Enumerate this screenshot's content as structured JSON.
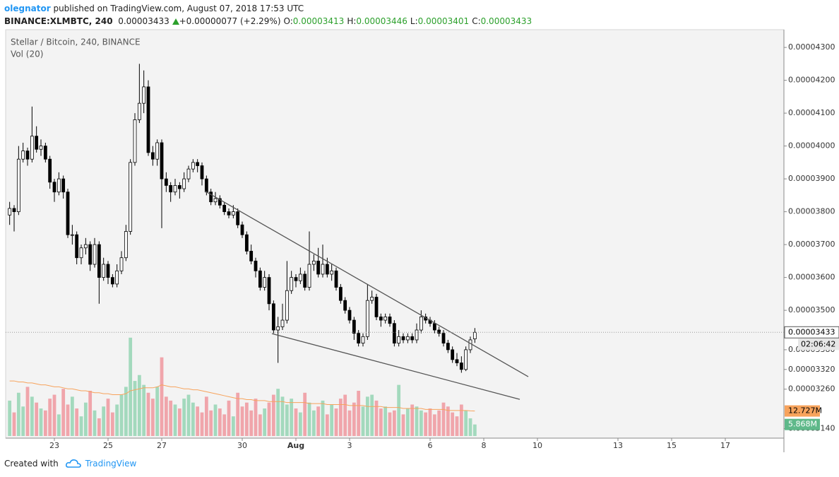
{
  "header": {
    "author": "olegnator",
    "published": "published on TradingView.com, August 07, 2018 17:53 UTC",
    "symbol": "BINANCE:XLMBTC, 240",
    "last": "0.00003433",
    "change": "+0.00000077 (+2.29%)",
    "ohlc": [
      {
        "label": "O:",
        "value": "0.00003413"
      },
      {
        "label": "H:",
        "value": "0.00003446"
      },
      {
        "label": "L:",
        "value": "0.00003401"
      },
      {
        "label": "C:",
        "value": "0.00003433"
      }
    ]
  },
  "chart_data": {
    "type": "candlestick",
    "title": "Stellar / Bitcoin, 240, BINANCE",
    "volume_label": "Vol (20)",
    "x": [
      21.333,
      21.5,
      21.667,
      21.833,
      22,
      22.167,
      22.333,
      22.5,
      22.667,
      22.833,
      23,
      23.167,
      23.333,
      23.5,
      23.667,
      23.833,
      24,
      24.167,
      24.333,
      24.5,
      24.667,
      24.833,
      25,
      25.167,
      25.333,
      25.5,
      25.667,
      25.833,
      26,
      26.167,
      26.333,
      26.5,
      26.667,
      26.833,
      27,
      27.167,
      27.333,
      27.5,
      27.667,
      27.833,
      28,
      28.167,
      28.333,
      28.5,
      28.667,
      28.833,
      29,
      29.167,
      29.333,
      29.5,
      29.667,
      29.833,
      30,
      30.167,
      30.333,
      30.5,
      30.667,
      30.833,
      31,
      31.167,
      31.333,
      31.5,
      31.667,
      31.833,
      32,
      32.167,
      32.333,
      32.5,
      32.667,
      32.833,
      33,
      33.167,
      33.333,
      33.5,
      33.667,
      33.833,
      34,
      34.167,
      34.333,
      34.5,
      34.667,
      34.833,
      35,
      35.167,
      35.333,
      35.5,
      35.667,
      35.833,
      36,
      36.167,
      36.333,
      36.5,
      36.667,
      36.833,
      37,
      37.167,
      37.333,
      37.5,
      37.667,
      37.833,
      38,
      38.167,
      38.333,
      38.5,
      38.667
    ],
    "open": [
      3.79e-05,
      3.81e-05,
      3.8e-05,
      3.96e-05,
      3.985e-05,
      3.96e-05,
      4.03e-05,
      3.99e-05,
      4e-05,
      3.96e-05,
      3.89e-05,
      3.86e-05,
      3.9e-05,
      3.86e-05,
      3.73e-05,
      3.73e-05,
      3.66e-05,
      3.69e-05,
      3.7e-05,
      3.64e-05,
      3.7e-05,
      3.6e-05,
      3.64e-05,
      3.6e-05,
      3.58e-05,
      3.62e-05,
      3.66e-05,
      3.74e-05,
      3.95e-05,
      4.08e-05,
      4.13e-05,
      4.18e-05,
      3.98e-05,
      3.96e-05,
      4.01e-05,
      3.9e-05,
      3.88e-05,
      3.86e-05,
      3.88e-05,
      3.87e-05,
      3.9e-05,
      3.93e-05,
      3.95e-05,
      3.94e-05,
      3.9e-05,
      3.86e-05,
      3.83e-05,
      3.84e-05,
      3.82e-05,
      3.8e-05,
      3.79e-05,
      3.8e-05,
      3.76e-05,
      3.73e-05,
      3.68e-05,
      3.65e-05,
      3.62e-05,
      3.57e-05,
      3.6e-05,
      3.52e-05,
      3.44e-05,
      3.45e-05,
      3.47e-05,
      3.56e-05,
      3.6e-05,
      3.59e-05,
      3.61e-05,
      3.57e-05,
      3.64e-05,
      3.65e-05,
      3.61e-05,
      3.64e-05,
      3.61e-05,
      3.62e-05,
      3.57e-05,
      3.53e-05,
      3.5e-05,
      3.47e-05,
      3.43e-05,
      3.4e-05,
      3.42e-05,
      3.53e-05,
      3.54e-05,
      3.48e-05,
      3.47e-05,
      3.48e-05,
      3.46e-05,
      3.4e-05,
      3.42e-05,
      3.41e-05,
      3.42e-05,
      3.41e-05,
      3.44e-05,
      3.48e-05,
      3.47e-05,
      3.46e-05,
      3.44e-05,
      3.43e-05,
      3.4e-05,
      3.38e-05,
      3.35e-05,
      3.34e-05,
      3.32e-05,
      3.38e-05,
      3.413e-05
    ],
    "high": [
      3.83e-05,
      3.82e-05,
      4e-05,
      4.01e-05,
      3.995e-05,
      4.12e-05,
      4.06e-05,
      4.02e-05,
      4.01e-05,
      3.97e-05,
      3.9e-05,
      3.92e-05,
      3.91e-05,
      3.87e-05,
      3.76e-05,
      3.74e-05,
      3.7e-05,
      3.72e-05,
      3.71e-05,
      3.72e-05,
      3.71e-05,
      3.66e-05,
      3.65e-05,
      3.61e-05,
      3.64e-05,
      3.68e-05,
      3.76e-05,
      3.96e-05,
      4.1e-05,
      4.25e-05,
      4.23e-05,
      4.2e-05,
      4e-05,
      4.02e-05,
      4.02e-05,
      3.92e-05,
      3.89e-05,
      3.9e-05,
      3.89e-05,
      3.92e-05,
      3.94e-05,
      3.96e-05,
      3.96e-05,
      3.95e-05,
      3.91e-05,
      3.87e-05,
      3.86e-05,
      3.85e-05,
      3.83e-05,
      3.81e-05,
      3.82e-05,
      3.81e-05,
      3.77e-05,
      3.74e-05,
      3.7e-05,
      3.66e-05,
      3.63e-05,
      3.62e-05,
      3.61e-05,
      3.53e-05,
      3.48e-05,
      3.52e-05,
      3.65e-05,
      3.62e-05,
      3.61e-05,
      3.63e-05,
      3.62e-05,
      3.74e-05,
      3.67e-05,
      3.69e-05,
      3.7e-05,
      3.66e-05,
      3.64e-05,
      3.63e-05,
      3.58e-05,
      3.54e-05,
      3.51e-05,
      3.48e-05,
      3.44e-05,
      3.43e-05,
      3.58e-05,
      3.56e-05,
      3.55e-05,
      3.49e-05,
      3.49e-05,
      3.49e-05,
      3.47e-05,
      3.44e-05,
      3.43e-05,
      3.43e-05,
      3.43e-05,
      3.46e-05,
      3.5e-05,
      3.49e-05,
      3.48e-05,
      3.47e-05,
      3.45e-05,
      3.44e-05,
      3.41e-05,
      3.39e-05,
      3.37e-05,
      3.36e-05,
      3.39e-05,
      3.42e-05,
      3.446e-05
    ],
    "low": [
      3.76e-05,
      3.74e-05,
      3.79e-05,
      3.95e-05,
      3.94e-05,
      3.95e-05,
      3.98e-05,
      3.97e-05,
      3.95e-05,
      3.87e-05,
      3.83e-05,
      3.85e-05,
      3.84e-05,
      3.72e-05,
      3.7e-05,
      3.64e-05,
      3.64e-05,
      3.67e-05,
      3.62e-05,
      3.63e-05,
      3.52e-05,
      3.59e-05,
      3.58e-05,
      3.57e-05,
      3.57e-05,
      3.61e-05,
      3.65e-05,
      3.73e-05,
      3.94e-05,
      4.07e-05,
      4.1e-05,
      3.97e-05,
      3.94e-05,
      3.94e-05,
      3.75e-05,
      3.86e-05,
      3.83e-05,
      3.85e-05,
      3.84e-05,
      3.86e-05,
      3.89e-05,
      3.92e-05,
      3.92e-05,
      3.88e-05,
      3.85e-05,
      3.82e-05,
      3.82e-05,
      3.81e-05,
      3.79e-05,
      3.78e-05,
      3.78e-05,
      3.75e-05,
      3.72e-05,
      3.67e-05,
      3.64e-05,
      3.6e-05,
      3.56e-05,
      3.56e-05,
      3.5e-05,
      3.43e-05,
      3.34e-05,
      3.44e-05,
      3.46e-05,
      3.55e-05,
      3.57e-05,
      3.58e-05,
      3.56e-05,
      3.56e-05,
      3.62e-05,
      3.6e-05,
      3.6e-05,
      3.6e-05,
      3.59e-05,
      3.56e-05,
      3.52e-05,
      3.49e-05,
      3.46e-05,
      3.41e-05,
      3.39e-05,
      3.39e-05,
      3.41e-05,
      3.52e-05,
      3.47e-05,
      3.45e-05,
      3.46e-05,
      3.45e-05,
      3.39e-05,
      3.39e-05,
      3.4e-05,
      3.4e-05,
      3.4e-05,
      3.4e-05,
      3.43e-05,
      3.46e-05,
      3.45e-05,
      3.43e-05,
      3.42e-05,
      3.39e-05,
      3.37e-05,
      3.34e-05,
      3.33e-05,
      3.31e-05,
      3.315e-05,
      3.37e-05,
      3.401e-05
    ],
    "close": [
      3.81e-05,
      3.8e-05,
      3.96e-05,
      3.985e-05,
      3.96e-05,
      4.03e-05,
      3.99e-05,
      4e-05,
      3.96e-05,
      3.89e-05,
      3.86e-05,
      3.9e-05,
      3.86e-05,
      3.73e-05,
      3.73e-05,
      3.66e-05,
      3.69e-05,
      3.7e-05,
      3.64e-05,
      3.7e-05,
      3.6e-05,
      3.64e-05,
      3.6e-05,
      3.58e-05,
      3.62e-05,
      3.66e-05,
      3.74e-05,
      3.95e-05,
      4.08e-05,
      4.13e-05,
      4.18e-05,
      3.98e-05,
      3.96e-05,
      4.01e-05,
      3.9e-05,
      3.88e-05,
      3.86e-05,
      3.88e-05,
      3.87e-05,
      3.9e-05,
      3.93e-05,
      3.95e-05,
      3.94e-05,
      3.9e-05,
      3.86e-05,
      3.83e-05,
      3.84e-05,
      3.82e-05,
      3.8e-05,
      3.79e-05,
      3.8e-05,
      3.76e-05,
      3.73e-05,
      3.68e-05,
      3.65e-05,
      3.62e-05,
      3.57e-05,
      3.6e-05,
      3.52e-05,
      3.44e-05,
      3.45e-05,
      3.47e-05,
      3.56e-05,
      3.6e-05,
      3.59e-05,
      3.61e-05,
      3.57e-05,
      3.64e-05,
      3.65e-05,
      3.61e-05,
      3.64e-05,
      3.61e-05,
      3.62e-05,
      3.57e-05,
      3.53e-05,
      3.5e-05,
      3.47e-05,
      3.43e-05,
      3.4e-05,
      3.42e-05,
      3.53e-05,
      3.54e-05,
      3.48e-05,
      3.47e-05,
      3.48e-05,
      3.46e-05,
      3.4e-05,
      3.42e-05,
      3.41e-05,
      3.42e-05,
      3.41e-05,
      3.44e-05,
      3.48e-05,
      3.47e-05,
      3.46e-05,
      3.44e-05,
      3.43e-05,
      3.4e-05,
      3.38e-05,
      3.35e-05,
      3.34e-05,
      3.32e-05,
      3.38e-05,
      3.41e-05,
      3.433e-05
    ],
    "volume": [
      18,
      12,
      22,
      15,
      25,
      20,
      17,
      14,
      13,
      19,
      21,
      11,
      24,
      16,
      20,
      14,
      10,
      17,
      23,
      13,
      9,
      15,
      19,
      12,
      16,
      21,
      25,
      50,
      28,
      31,
      26,
      22,
      19,
      25,
      40,
      20,
      18,
      16,
      14,
      19,
      21,
      17,
      15,
      12,
      20,
      13,
      16,
      14,
      11,
      18,
      10,
      22,
      15,
      17,
      13,
      19,
      11,
      14,
      17,
      21,
      24,
      20,
      16,
      19,
      14,
      12,
      22,
      17,
      13,
      15,
      18,
      11,
      16,
      14,
      19,
      21,
      13,
      17,
      23,
      15,
      20,
      21,
      18,
      14,
      15,
      12,
      13,
      26,
      11,
      14,
      16,
      15,
      13,
      12,
      14,
      11,
      13,
      17,
      15,
      12,
      10,
      16,
      13,
      9,
      5.868
    ],
    "volume_ma": [
      28,
      28,
      27.5,
      27.5,
      27,
      27,
      26.5,
      26,
      26,
      25.5,
      25,
      25,
      24.5,
      24,
      24,
      23.5,
      23,
      23,
      22.5,
      22,
      22,
      21.5,
      21.5,
      21,
      21,
      21,
      21.5,
      23,
      23.5,
      24,
      24.5,
      24.5,
      24.5,
      25,
      26,
      25.5,
      25,
      25,
      24.5,
      24,
      24,
      23.5,
      23.5,
      23,
      22.5,
      22,
      21.5,
      21,
      20.5,
      20,
      19.5,
      19,
      19,
      18.5,
      18.5,
      18,
      18,
      18,
      17.5,
      17.5,
      17.5,
      17.5,
      17,
      17,
      17,
      17,
      17,
      16.5,
      16.5,
      16.5,
      16.5,
      16,
      16,
      16,
      16,
      16,
      15.5,
      15.5,
      15.5,
      15.5,
      15,
      15,
      15,
      15,
      14.5,
      14.5,
      14.5,
      14.5,
      14,
      14,
      14,
      14,
      14,
      13.5,
      13.5,
      13.5,
      13.5,
      13.5,
      13,
      13,
      13,
      13,
      13,
      12.8,
      12.727
    ],
    "xlim": [
      21.184,
      50.184
    ],
    "xticks": [
      23,
      25,
      27,
      30,
      {
        "value": 32,
        "label": "Aug"
      },
      {
        "value": 34,
        "label": "3"
      },
      {
        "value": 37,
        "label": "6"
      },
      {
        "value": 39,
        "label": "8"
      },
      {
        "value": 41,
        "label": "10"
      },
      {
        "value": 44,
        "label": "13"
      },
      {
        "value": 46,
        "label": "15"
      },
      {
        "value": 48,
        "label": "17"
      }
    ],
    "ylim": [
      3.111e-05,
      4.354e-05
    ],
    "yticks": [
      {
        "value": 4.3e-05,
        "label": "0.00004300"
      },
      {
        "value": 4.2e-05,
        "label": "0.00004200"
      },
      {
        "value": 4.1e-05,
        "label": "0.00004100"
      },
      {
        "value": 4e-05,
        "label": "0.00004000"
      },
      {
        "value": 3.9e-05,
        "label": "0.00003900"
      },
      {
        "value": 3.8e-05,
        "label": "0.00003800"
      },
      {
        "value": 3.7e-05,
        "label": "0.00003700"
      },
      {
        "value": 3.6e-05,
        "label": "0.00003600"
      },
      {
        "value": 3.5e-05,
        "label": "0.00003500"
      },
      {
        "value": 3.38e-05,
        "label": "0.00003380"
      },
      {
        "value": 3.32e-05,
        "label": "0.00003320"
      },
      {
        "value": 3.26e-05,
        "label": "0.00003260"
      },
      {
        "value": 3.14e-05,
        "label": "0.00003140"
      }
    ],
    "volume_lim": [
      0,
      60
    ],
    "grid": false,
    "up_color": "#ffffff",
    "down_color": "#000000",
    "wick_color": "#000000",
    "volume_up_color": "#a3d9bd",
    "volume_down_color": "#f0a5ab",
    "volume_ma_color": "#f7a35c",
    "trendline_color": "#555555",
    "trendlines": [
      {
        "x": [
          28.605,
          40.658
        ],
        "y": [
          3.863e-05,
          3.298e-05
        ]
      },
      {
        "x": [
          31.105,
          40.342
        ],
        "y": [
          3.429e-05,
          3.229e-05
        ]
      }
    ],
    "last_price": {
      "value": 3.433e-05,
      "label": "0.00003433"
    },
    "countdown": "02:06:42",
    "volume_ma_last": {
      "value": 12.727,
      "label": "12.727M"
    },
    "volume_last": {
      "value": 5.868,
      "label": "5.868M"
    }
  },
  "footer": {
    "created": "Created with",
    "brand": "TradingView"
  }
}
